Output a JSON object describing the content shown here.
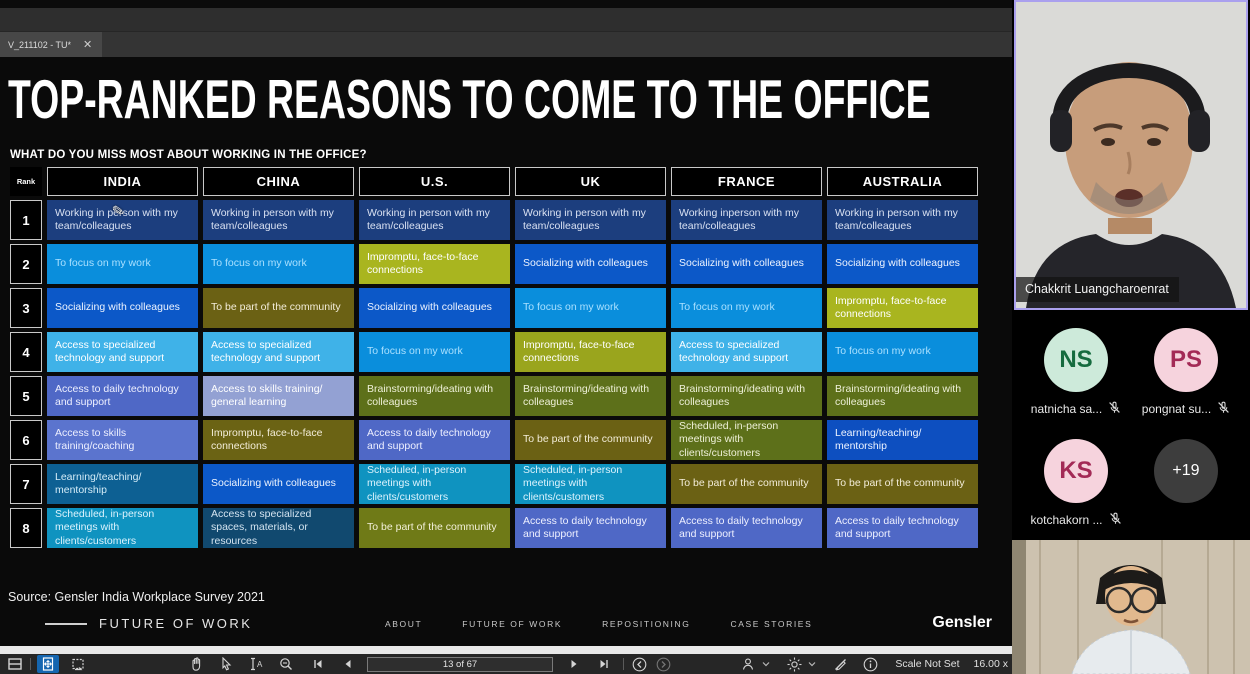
{
  "window": {
    "tab_title": "V_211102 - TU*",
    "close_icon": "✕"
  },
  "slide": {
    "title": "TOP-RANKED REASONS TO COME TO THE OFFICE",
    "subtitle": "WHAT DO YOU MISS MOST ABOUT WORKING IN THE OFFICE?",
    "source": "Source: Gensler India Workplace Survey 2021",
    "pencil_cursor_glyph": "✎",
    "footer": {
      "brand_left": "FUTURE OF WORK",
      "nav": [
        "ABOUT",
        "FUTURE OF WORK",
        "REPOSITIONING",
        "CASE STORIES"
      ],
      "logo": "Gensler"
    },
    "table": {
      "rank_header": "Rank",
      "columns": [
        "INDIA",
        "CHINA",
        "U.S.",
        "UK",
        "FRANCE",
        "AUSTRALIA"
      ],
      "rows": [
        {
          "rank": "1",
          "cells": [
            {
              "text": "Working in person with my team/colleagues",
              "bg": "#1c3e7e",
              "fg": "#d9e1f2"
            },
            {
              "text": "Working in person with my team/colleagues",
              "bg": "#1c3e7e",
              "fg": "#d9e1f2"
            },
            {
              "text": "Working in person with my team/colleagues",
              "bg": "#1c3e7e",
              "fg": "#d9e1f2"
            },
            {
              "text": "Working in person with my team/colleagues",
              "bg": "#1c3e7e",
              "fg": "#d9e1f2"
            },
            {
              "text": "Working inperson with my team/colleagues",
              "bg": "#1c3e7e",
              "fg": "#d9e1f2"
            },
            {
              "text": "Working in person with my team/colleagues",
              "bg": "#1c3e7e",
              "fg": "#d9e1f2"
            }
          ]
        },
        {
          "rank": "2",
          "cells": [
            {
              "text": "To focus on my work",
              "bg": "#0a8edc",
              "fg": "#a9e0ff"
            },
            {
              "text": "To focus on my work",
              "bg": "#0a8edc",
              "fg": "#a9e0ff"
            },
            {
              "text": "Impromptu, face-to-face connections",
              "bg": "#a9b51f",
              "fg": "#ffffff"
            },
            {
              "text": "Socializing with colleagues",
              "bg": "#0c58c8",
              "fg": "#eef4ff"
            },
            {
              "text": "Socializing with colleagues",
              "bg": "#0c58c8",
              "fg": "#eef4ff"
            },
            {
              "text": "Socializing with colleagues",
              "bg": "#0c58c8",
              "fg": "#eef4ff"
            }
          ]
        },
        {
          "rank": "3",
          "cells": [
            {
              "text": "Socializing with colleagues",
              "bg": "#0c58c8",
              "fg": "#eef4ff"
            },
            {
              "text": "To be part of the community",
              "bg": "#6b6114",
              "fg": "#f3edd9"
            },
            {
              "text": "Socializing with colleagues",
              "bg": "#0c58c8",
              "fg": "#eef4ff"
            },
            {
              "text": "To focus on my work",
              "bg": "#0a8edc",
              "fg": "#a9e0ff"
            },
            {
              "text": "To focus on my work",
              "bg": "#0a8edc",
              "fg": "#a9e0ff"
            },
            {
              "text": "Impromptu, face-to-face connections",
              "bg": "#a9b51f",
              "fg": "#ffffff"
            }
          ]
        },
        {
          "rank": "4",
          "cells": [
            {
              "text": "Access to specialized technology and support",
              "bg": "#3fb2e8",
              "fg": "#ffffff"
            },
            {
              "text": "Access to specialized technology and support",
              "bg": "#3fb2e8",
              "fg": "#ffffff"
            },
            {
              "text": "To focus on my work",
              "bg": "#0a8edc",
              "fg": "#a9e0ff"
            },
            {
              "text": "Impromptu, face-to-face connections",
              "bg": "#9aa51d",
              "fg": "#ffffff"
            },
            {
              "text": "Access to specialized technology and support",
              "bg": "#3fb2e8",
              "fg": "#ffffff"
            },
            {
              "text": "To focus on my work",
              "bg": "#0a8edc",
              "fg": "#a9e0ff"
            }
          ]
        },
        {
          "rank": "5",
          "cells": [
            {
              "text": "Access to daily technology and support",
              "bg": "#4f68c6",
              "fg": "#eef0ff"
            },
            {
              "text": "Access to skills training/ general learning",
              "bg": "#93a1d3",
              "fg": "#ffffff"
            },
            {
              "text": "Brainstorming/ideating with colleagues",
              "bg": "#5d701a",
              "fg": "#eef0d8"
            },
            {
              "text": "Brainstorming/ideating with colleagues",
              "bg": "#5d701a",
              "fg": "#eef0d8"
            },
            {
              "text": "Brainstorming/ideating with colleagues",
              "bg": "#5d701a",
              "fg": "#eef0d8"
            },
            {
              "text": "Brainstorming/ideating with colleagues",
              "bg": "#5d701a",
              "fg": "#eef0d8"
            }
          ]
        },
        {
          "rank": "6",
          "cells": [
            {
              "text": "Access to skills training/coaching",
              "bg": "#5b74ce",
              "fg": "#eef0ff"
            },
            {
              "text": "Impromptu, face-to-face connections",
              "bg": "#6b6314",
              "fg": "#f3edd9"
            },
            {
              "text": "Access to daily technology and support",
              "bg": "#4f68c6",
              "fg": "#eef0ff"
            },
            {
              "text": "To be part of the community",
              "bg": "#6b6114",
              "fg": "#f3edd9"
            },
            {
              "text": "Scheduled, in-person meetings with clients/customers",
              "bg": "#5d701a",
              "fg": "#eef0d8"
            },
            {
              "text": "Learning/teaching/ mentorship",
              "bg": "#0d4fc0",
              "fg": "#eef4ff"
            }
          ]
        },
        {
          "rank": "7",
          "cells": [
            {
              "text": "Learning/teaching/ mentorship",
              "bg": "#0d6093",
              "fg": "#d4ecf8"
            },
            {
              "text": "Socializing with colleagues",
              "bg": "#0c58c8",
              "fg": "#eef4ff"
            },
            {
              "text": "Scheduled, in-person meetings with clients/customers",
              "bg": "#0f93c0",
              "fg": "#dcf3fd"
            },
            {
              "text": "Scheduled, in-person meetings with clients/customers",
              "bg": "#0f93c0",
              "fg": "#dcf3fd"
            },
            {
              "text": "To be part of the community",
              "bg": "#6b6114",
              "fg": "#f3edd9"
            },
            {
              "text": "To be part of the community",
              "bg": "#6b6114",
              "fg": "#f3edd9"
            }
          ]
        },
        {
          "rank": "8",
          "cells": [
            {
              "text": "Scheduled, in-person meetings with clients/customers",
              "bg": "#0f93c0",
              "fg": "#dcf3fd"
            },
            {
              "text": "Access to specialized spaces, materials, or resources",
              "bg": "#11496f",
              "fg": "#d4e4f0"
            },
            {
              "text": "To be part of the community",
              "bg": "#6f7a17",
              "fg": "#f3f0d9"
            },
            {
              "text": "Access to daily technology and support",
              "bg": "#4f68c6",
              "fg": "#eef0ff"
            },
            {
              "text": "Access to daily technology and support",
              "bg": "#4f68c6",
              "fg": "#eef0ff"
            },
            {
              "text": "Access to daily technology and support",
              "bg": "#4f68c6",
              "fg": "#eef0ff"
            }
          ]
        }
      ]
    }
  },
  "viewer_toolbar": {
    "page_indicator": "13 of 67",
    "scale_status": "Scale Not Set",
    "zoom_level": "16.00 x",
    "icons": [
      "split-panes-icon",
      "fit-page-icon",
      "snapshot-icon",
      "hand-tool-icon",
      "select-tool-icon",
      "text-select-icon",
      "zoom-tool-icon",
      "first-page-icon",
      "prev-page-icon",
      "next-page-icon",
      "last-page-icon",
      "history-back-icon",
      "history-forward-icon",
      "user-icon",
      "brightness-icon",
      "pen-disabled-icon",
      "info-icon"
    ]
  },
  "meeting_panel": {
    "active_speaker": {
      "name": "Chakkrit Luangcharoenrat"
    },
    "participants": [
      {
        "initials": "NS",
        "label": "natnicha sa...",
        "avatar_bg": "#cdeada",
        "avatar_fg": "#156b3e",
        "muted": true
      },
      {
        "initials": "PS",
        "label": "pongnat su...",
        "avatar_bg": "#f6d3dd",
        "avatar_fg": "#a32a56",
        "muted": true
      },
      {
        "initials": "KS",
        "label": "kotchakorn ...",
        "avatar_bg": "#f6d3dd",
        "avatar_fg": "#a32a56",
        "muted": true
      },
      {
        "initials": "+19",
        "label": "",
        "avatar_bg": "#3d3d3d",
        "avatar_fg": "#ffffff",
        "muted": false
      }
    ]
  }
}
